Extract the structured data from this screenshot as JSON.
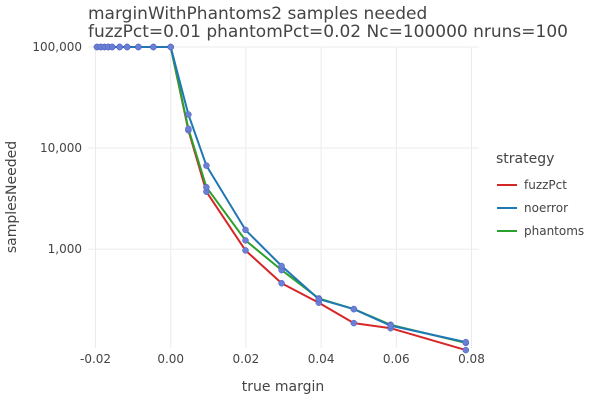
{
  "chart_data": {
    "type": "line",
    "title": "marginWithPhantoms2 samples needed",
    "subtitle": "fuzzPct=0.01 phantomPct=0.02 Nc=100000 nruns=100",
    "xlabel": "true margin",
    "ylabel": "samplesNeeded",
    "xlim": [
      -0.022,
      0.082
    ],
    "ylim": [
      105,
      100000
    ],
    "yscale": "log",
    "xticks": [
      -0.02,
      0.0,
      0.02,
      0.04,
      0.06,
      0.08
    ],
    "xtick_labels": [
      "-0.02",
      "0.00",
      "0.02",
      "0.04",
      "0.06",
      "0.08"
    ],
    "yticks": [
      1000,
      10000,
      100000
    ],
    "ytick_labels": [
      "1,000",
      "10,000",
      "100,000"
    ],
    "grid": true,
    "legend": {
      "title": "strategy",
      "placement": "right"
    },
    "series": [
      {
        "name": "fuzzPct",
        "color": "#d62728",
        "x": [
          -0.0196,
          -0.0186,
          -0.0176,
          -0.0166,
          -0.0156,
          -0.0136,
          -0.0116,
          -0.0086,
          -0.0046,
          0.0,
          0.0047,
          0.0095,
          0.0199,
          0.0295,
          0.0394,
          0.0487,
          0.0585,
          0.0785
        ],
        "y": [
          100000,
          100000,
          100000,
          100000,
          100000,
          100000,
          100000,
          100000,
          100000,
          100000,
          15000,
          3700,
          970,
          460,
          295,
          185,
          165,
          100
        ]
      },
      {
        "name": "noerror",
        "color": "#1f77b4",
        "x": [
          -0.0196,
          -0.0186,
          -0.0176,
          -0.0166,
          -0.0156,
          -0.0136,
          -0.0116,
          -0.0086,
          -0.0046,
          0.0,
          0.0047,
          0.0095,
          0.0199,
          0.0295,
          0.0394,
          0.0487,
          0.0585,
          0.0785
        ],
        "y": [
          100000,
          100000,
          100000,
          100000,
          100000,
          100000,
          100000,
          100000,
          100000,
          100000,
          21500,
          6700,
          1550,
          680,
          320,
          255,
          175,
          120
        ]
      },
      {
        "name": "phantoms",
        "color": "#2ca02c",
        "x": [
          -0.0196,
          -0.0186,
          -0.0176,
          -0.0166,
          -0.0156,
          -0.0136,
          -0.0116,
          -0.0086,
          -0.0046,
          0.0,
          0.0047,
          0.0095,
          0.0199,
          0.0295,
          0.0394,
          0.0487,
          0.0585,
          0.0785
        ],
        "y": [
          100000,
          100000,
          100000,
          100000,
          100000,
          100000,
          100000,
          100000,
          100000,
          100000,
          15500,
          4100,
          1220,
          620,
          325,
          255,
          178,
          118
        ]
      }
    ]
  }
}
